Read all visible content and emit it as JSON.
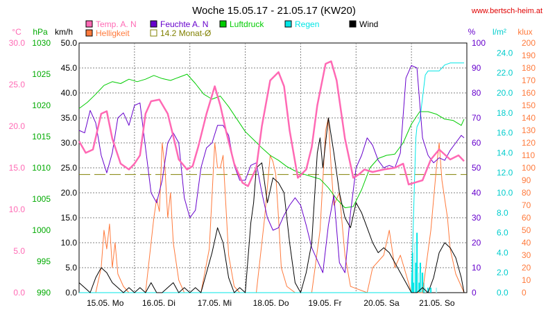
{
  "chart_data": {
    "type": "line",
    "title": "Woche 15.05.17 - 21.05.17 (KW20)",
    "source": "www.bertsch-heim.at",
    "x_labels": [
      "15.05.  Mo",
      "16.05.  Di",
      "17.05.  Mi",
      "18.05.  Do",
      "19.05.  Fr",
      "20.05.  Sa",
      "21.05.  So"
    ],
    "x_unit": "days",
    "x_range": [
      0,
      7
    ],
    "grid": true,
    "legend": [
      {
        "name": "Temp. A. N",
        "color": "#ff69b4"
      },
      {
        "name": "Feuchte A. N",
        "color": "#6600cc"
      },
      {
        "name": "Luftdruck",
        "color": "#00cc00"
      },
      {
        "name": "Regen",
        "color": "#00e5e5"
      },
      {
        "name": "Wind",
        "color": "#000000"
      },
      {
        "name": "Helligkeit",
        "color": "#ff7a3c"
      },
      {
        "name": "14.2 Monat-Ø",
        "color": "#808000"
      }
    ],
    "axes": {
      "temp": {
        "label": "°C",
        "color": "#ff69b4",
        "range": [
          0,
          30
        ],
        "ticks": [
          "0.0",
          "5.0",
          "10.0",
          "15.0",
          "20.0",
          "25.0",
          "30.0"
        ]
      },
      "press": {
        "label": "hPa",
        "color": "#00aa00",
        "range": [
          990,
          1030
        ],
        "ticks": [
          "990",
          "995",
          "1000",
          "1005",
          "1010",
          "1015",
          "1020",
          "1025",
          "1030"
        ]
      },
      "wind": {
        "label": "km/h",
        "color": "#000000",
        "range": [
          0,
          50
        ],
        "ticks": [
          "0.0",
          "5.0",
          "10.0",
          "15.0",
          "20.0",
          "25.0",
          "30.0",
          "35.0",
          "40.0",
          "45.0",
          "50.0"
        ]
      },
      "hum": {
        "label": "%",
        "color": "#6600cc",
        "range": [
          0,
          100
        ],
        "ticks": [
          "0",
          "10",
          "20",
          "30",
          "40",
          "50",
          "60",
          "70",
          "80",
          "90",
          "100"
        ]
      },
      "rain": {
        "label": "l/m²",
        "color": "#00cccc",
        "range": [
          0,
          25
        ],
        "ticks": [
          "0.0",
          "2.0",
          "4.0",
          "6.0",
          "8.0",
          "10.0",
          "12.0",
          "14.0",
          "16.0",
          "18.0",
          "20.0",
          "22.0",
          "24.0"
        ]
      },
      "lux": {
        "label": "klux",
        "color": "#ff7a3c",
        "range": [
          0,
          200
        ],
        "ticks": [
          "0",
          "10",
          "20",
          "30",
          "40",
          "50",
          "60",
          "70",
          "80",
          "90",
          "100",
          "110",
          "120",
          "130",
          "140",
          "150",
          "160",
          "170",
          "180",
          "190",
          "200"
        ]
      }
    },
    "series": [
      {
        "name": "Temp. A. N",
        "axis": "temp",
        "color": "#ff69b4",
        "width": 2.5,
        "x": [
          0,
          0.12,
          0.25,
          0.4,
          0.5,
          0.6,
          0.75,
          0.9,
          1.0,
          1.1,
          1.2,
          1.3,
          1.45,
          1.6,
          1.7,
          1.8,
          1.95,
          2.05,
          2.15,
          2.3,
          2.45,
          2.55,
          2.65,
          2.8,
          2.95,
          3.05,
          3.2,
          3.3,
          3.45,
          3.6,
          3.7,
          3.8,
          3.95,
          4.1,
          4.2,
          4.3,
          4.45,
          4.55,
          4.65,
          4.8,
          4.95,
          5.05,
          5.15,
          5.3,
          5.5,
          5.7,
          5.85,
          5.95,
          6.05,
          6.2,
          6.35,
          6.5,
          6.7,
          6.85,
          6.95
        ],
        "y": [
          18.2,
          16.8,
          17.2,
          21.5,
          21.8,
          18.5,
          15.5,
          14.8,
          15.5,
          16.5,
          21.5,
          23.0,
          23.2,
          21.5,
          18.8,
          16.0,
          14.8,
          15.2,
          17.5,
          21.5,
          24.8,
          22.5,
          19.5,
          15.5,
          13.2,
          12.8,
          15.0,
          20.0,
          25.5,
          26.5,
          24.8,
          19.5,
          13.8,
          14.8,
          17.5,
          22.5,
          27.5,
          27.8,
          25.5,
          18.5,
          13.8,
          14.2,
          14.8,
          14.5,
          14.8,
          15.0,
          15.5,
          13.0,
          13.2,
          13.5,
          16.0,
          17.2,
          16.0,
          16.5,
          15.8
        ]
      },
      {
        "name": "Feuchte A. N",
        "axis": "hum",
        "color": "#6600cc",
        "width": 1,
        "x": [
          0,
          0.1,
          0.2,
          0.3,
          0.4,
          0.5,
          0.6,
          0.7,
          0.8,
          0.9,
          1.0,
          1.1,
          1.2,
          1.3,
          1.4,
          1.5,
          1.6,
          1.7,
          1.8,
          1.9,
          2.0,
          2.1,
          2.2,
          2.3,
          2.4,
          2.5,
          2.6,
          2.7,
          2.8,
          2.9,
          3.0,
          3.1,
          3.2,
          3.3,
          3.4,
          3.5,
          3.6,
          3.7,
          3.8,
          3.9,
          4.0,
          4.1,
          4.2,
          4.3,
          4.4,
          4.5,
          4.6,
          4.7,
          4.8,
          4.9,
          5.0,
          5.1,
          5.2,
          5.3,
          5.4,
          5.5,
          5.6,
          5.7,
          5.8,
          5.9,
          6.0,
          6.1,
          6.2,
          6.3,
          6.4,
          6.5,
          6.6,
          6.7,
          6.8,
          6.9,
          6.95
        ],
        "y": [
          65,
          64,
          73,
          68,
          55,
          48,
          56,
          70,
          72,
          67,
          75,
          76,
          58,
          40,
          36,
          45,
          60,
          64,
          60,
          38,
          30,
          33,
          50,
          58,
          60,
          67,
          67,
          63,
          51,
          45,
          45,
          51,
          52,
          40,
          30,
          25,
          26,
          31,
          35,
          38,
          35,
          27,
          18,
          13,
          8,
          27,
          39,
          12,
          8,
          32,
          50,
          55,
          62,
          59,
          53,
          50,
          51,
          50,
          56,
          86,
          91,
          90,
          62,
          55,
          52,
          54,
          53,
          57,
          60,
          63,
          62
        ]
      },
      {
        "name": "Luftdruck",
        "axis": "press",
        "color": "#00cc00",
        "width": 1,
        "x": [
          0,
          0.15,
          0.3,
          0.45,
          0.6,
          0.75,
          0.9,
          1.05,
          1.2,
          1.35,
          1.5,
          1.65,
          1.8,
          1.95,
          2.1,
          2.25,
          2.4,
          2.55,
          2.7,
          2.85,
          3.0,
          3.15,
          3.3,
          3.45,
          3.6,
          3.75,
          3.9,
          4.05,
          4.2,
          4.35,
          4.5,
          4.65,
          4.8,
          4.95,
          5.1,
          5.25,
          5.4,
          5.55,
          5.7,
          5.85,
          6.0,
          6.15,
          6.3,
          6.45,
          6.6,
          6.75,
          6.9,
          6.95
        ],
        "y": [
          1019.5,
          1020.5,
          1021.8,
          1023.2,
          1023.8,
          1023.5,
          1024.2,
          1023.8,
          1024.2,
          1024.8,
          1024.3,
          1024.0,
          1024.5,
          1025.0,
          1023.5,
          1021.8,
          1021.0,
          1021.5,
          1019.8,
          1017.8,
          1015.8,
          1014.5,
          1013.2,
          1012.0,
          1011.2,
          1010.2,
          1009.5,
          1009.0,
          1008.6,
          1008.2,
          1006.8,
          1005.0,
          1003.6,
          1003.8,
          1006.5,
          1010.0,
          1011.5,
          1012.0,
          1012.2,
          1014.0,
          1017.0,
          1019.0,
          1019.0,
          1018.6,
          1017.8,
          1017.6,
          1016.8,
          1017.8
        ]
      },
      {
        "name": "Regen",
        "axis": "rain",
        "color": "#00e5e5",
        "width": 1,
        "x": [
          0,
          6.0,
          6.02,
          6.04,
          6.06,
          6.08,
          6.1,
          6.15,
          6.2,
          6.25,
          6.3,
          6.4,
          6.5,
          6.6,
          6.7,
          6.95
        ],
        "y": [
          0,
          0,
          4.0,
          8.0,
          12.0,
          15.5,
          16.6,
          17.2,
          19.5,
          21.8,
          22.2,
          22.2,
          22.2,
          22.8,
          23.0,
          23.0
        ]
      },
      {
        "name": "Wind",
        "axis": "wind",
        "color": "#000000",
        "width": 1,
        "x": [
          0,
          0.1,
          0.2,
          0.3,
          0.4,
          0.5,
          0.6,
          0.7,
          0.8,
          0.9,
          1.0,
          1.1,
          1.2,
          1.3,
          1.4,
          1.5,
          1.6,
          1.7,
          1.8,
          1.9,
          2.0,
          2.1,
          2.2,
          2.3,
          2.4,
          2.5,
          2.6,
          2.7,
          2.8,
          2.9,
          3.0,
          3.1,
          3.15,
          3.2,
          3.3,
          3.4,
          3.5,
          3.6,
          3.7,
          3.8,
          3.9,
          4.0,
          4.1,
          4.2,
          4.3,
          4.35,
          4.4,
          4.5,
          4.6,
          4.7,
          4.8,
          4.9,
          5.0,
          5.1,
          5.2,
          5.3,
          5.4,
          5.5,
          5.6,
          5.7,
          5.8,
          5.9,
          6.0,
          6.1,
          6.2,
          6.3,
          6.4,
          6.5,
          6.6,
          6.7,
          6.8,
          6.9,
          6.95
        ],
        "y": [
          2,
          1,
          0,
          3,
          5,
          4,
          2,
          1,
          0,
          1,
          0,
          1,
          0,
          2,
          0,
          0,
          1,
          2,
          0,
          1,
          0,
          1,
          0,
          4,
          8,
          13,
          10,
          3,
          0,
          1,
          0,
          14,
          18,
          25,
          26,
          18,
          23,
          22,
          20,
          10,
          2,
          0,
          4,
          10,
          28,
          31,
          25,
          35,
          28,
          20,
          15,
          13,
          18,
          16,
          13,
          10,
          8,
          9,
          8,
          6,
          4,
          2,
          0,
          0,
          1,
          0,
          3,
          8,
          10,
          9,
          7,
          3,
          0
        ]
      },
      {
        "name": "Helligkeit",
        "axis": "lux",
        "color": "#ff7a3c",
        "width": 1,
        "x": [
          0,
          0.3,
          0.4,
          0.45,
          0.5,
          0.55,
          0.6,
          0.65,
          0.7,
          0.8,
          0.9,
          1.2,
          1.35,
          1.4,
          1.45,
          1.5,
          1.55,
          1.6,
          1.65,
          1.7,
          1.8,
          1.9,
          2.2,
          2.35,
          2.45,
          2.5,
          2.55,
          2.6,
          2.65,
          2.7,
          2.8,
          2.9,
          3.2,
          3.35,
          3.45,
          3.5,
          3.55,
          3.6,
          3.65,
          3.75,
          3.9,
          4.2,
          4.35,
          4.45,
          4.5,
          4.55,
          4.6,
          4.7,
          4.8,
          4.9,
          5.2,
          5.3,
          5.4,
          5.5,
          5.6,
          5.7,
          5.8,
          5.9,
          6.0,
          6.2,
          6.35,
          6.45,
          6.5,
          6.55,
          6.6,
          6.65,
          6.7,
          6.8,
          6.9,
          6.95
        ],
        "y": [
          0,
          0,
          20,
          50,
          35,
          55,
          20,
          40,
          15,
          5,
          0,
          0,
          60,
          75,
          65,
          120,
          100,
          60,
          80,
          40,
          10,
          0,
          0,
          35,
          120,
          100,
          100,
          110,
          70,
          30,
          5,
          0,
          0,
          60,
          110,
          105,
          95,
          60,
          20,
          5,
          0,
          0,
          50,
          130,
          140,
          100,
          70,
          80,
          30,
          5,
          0,
          20,
          25,
          30,
          50,
          20,
          30,
          15,
          0,
          0,
          50,
          100,
          120,
          90,
          75,
          60,
          35,
          15,
          5,
          0
        ]
      }
    ],
    "reference_line": {
      "name": "14.2 Monat-Ø",
      "axis": "temp",
      "value": 14.2,
      "color": "#808000"
    },
    "rain_bars": {
      "axis": "rain",
      "color": "#00e5e5",
      "color_light": "#b0f5f5",
      "x": [
        6.0,
        6.02,
        6.04,
        6.06,
        6.08,
        6.1,
        6.12,
        6.14,
        6.16,
        6.18,
        6.2,
        6.22,
        6.25,
        6.3,
        6.35,
        6.45
      ],
      "y": [
        2.0,
        4.0,
        1.0,
        5.0,
        3.0,
        6.0,
        2.0,
        1.0,
        3.0,
        2.0,
        2.0,
        1.0,
        0.5,
        0.5,
        0.5,
        0.5
      ]
    }
  }
}
